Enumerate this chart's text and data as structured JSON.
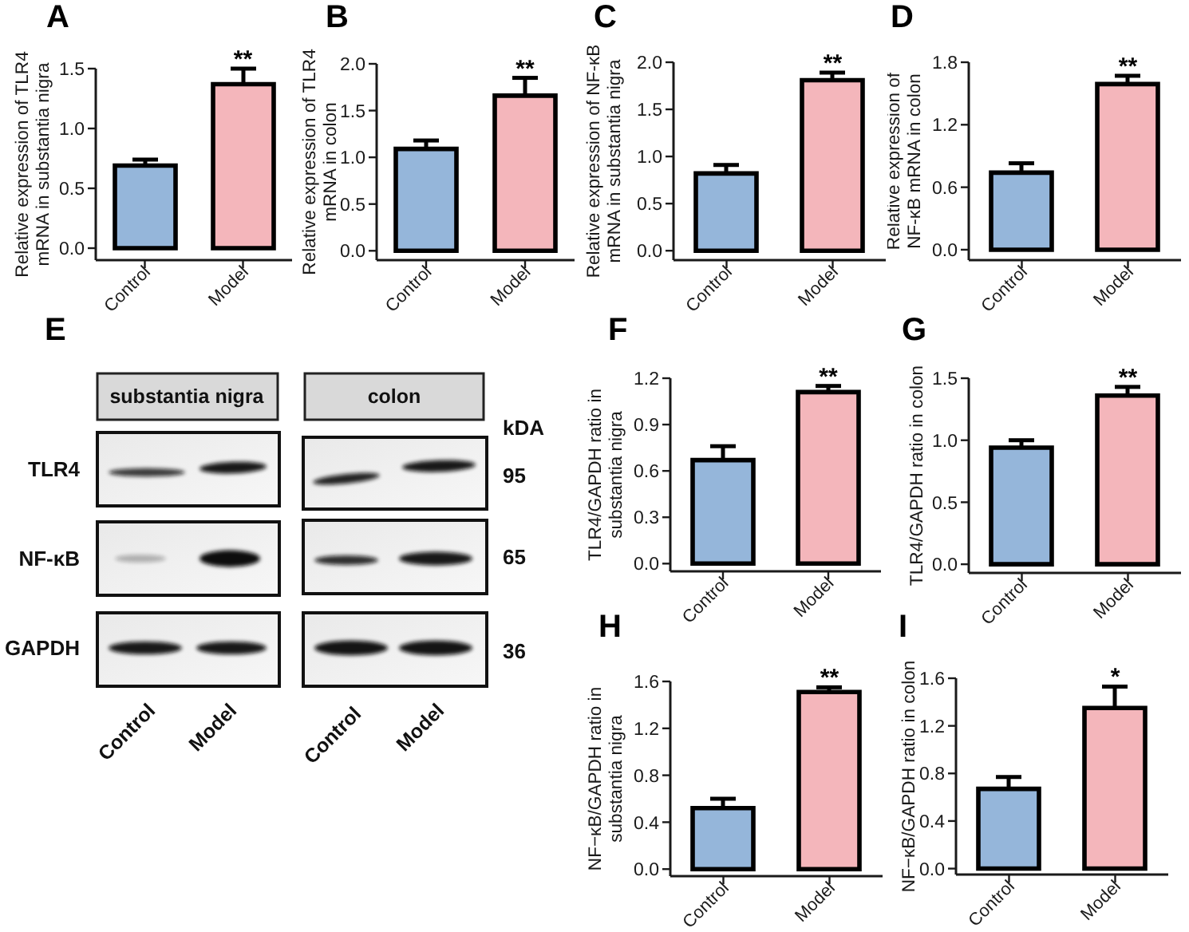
{
  "chart_data": [
    {
      "type": "bar",
      "title": "A",
      "ylabel": "Relative expression of TLR4\nmRNA in substantia nigra",
      "categories": [
        "Control",
        "Model"
      ],
      "values": [
        0.69,
        1.37
      ],
      "errors": [
        0.05,
        0.13
      ],
      "colors": [
        "#95b6da",
        "#f4b6bb"
      ],
      "ylim": [
        -0.1,
        1.5
      ],
      "yticks": [
        {
          "value": 0,
          "label": "0.0"
        },
        {
          "value": 0.5,
          "label": "0.5"
        },
        {
          "value": 1,
          "label": "1.0"
        },
        {
          "value": 1.5,
          "label": "1.5"
        }
      ],
      "annotations": [
        {
          "text": "**",
          "x": "Model",
          "y": 1.5
        }
      ]
    },
    {
      "type": "bar",
      "title": "B",
      "ylabel": "Relative expression of TLR4\nmRNA in colon",
      "categories": [
        "Control",
        "Model"
      ],
      "values": [
        1.09,
        1.66
      ],
      "errors": [
        0.09,
        0.19
      ],
      "colors": [
        "#95b6da",
        "#f4b6bb"
      ],
      "ylim": [
        -0.1,
        2.0
      ],
      "yticks": [
        {
          "value": 0,
          "label": "0.0"
        },
        {
          "value": 0.5,
          "label": "0.5"
        },
        {
          "value": 1,
          "label": "1.0"
        },
        {
          "value": 1.5,
          "label": "1.5"
        },
        {
          "value": 2,
          "label": "2.0"
        }
      ],
      "annotations": [
        {
          "text": "**",
          "x": "Model",
          "y": 1.85
        }
      ]
    },
    {
      "type": "bar",
      "title": "C",
      "ylabel": "Relative expression of NF-κB\nmRNA in substantia nigra",
      "categories": [
        "Control",
        "Model"
      ],
      "values": [
        0.82,
        1.81
      ],
      "errors": [
        0.09,
        0.08
      ],
      "colors": [
        "#95b6da",
        "#f4b6bb"
      ],
      "ylim": [
        -0.1,
        2.0
      ],
      "yticks": [
        {
          "value": 0,
          "label": "0.0"
        },
        {
          "value": 0.5,
          "label": "0.5"
        },
        {
          "value": 1,
          "label": "1.0"
        },
        {
          "value": 1.5,
          "label": "1.5"
        },
        {
          "value": 2,
          "label": "2.0"
        }
      ],
      "annotations": [
        {
          "text": "**",
          "x": "Model",
          "y": 1.89
        }
      ]
    },
    {
      "type": "bar",
      "title": "D",
      "ylabel": "Relative expression of\nNF-κB mRNA in colon",
      "categories": [
        "Control",
        "Model"
      ],
      "values": [
        0.74,
        1.59
      ],
      "errors": [
        0.09,
        0.08
      ],
      "colors": [
        "#95b6da",
        "#f4b6bb"
      ],
      "ylim": [
        -0.1,
        1.8
      ],
      "yticks": [
        {
          "value": 0,
          "label": "0.0"
        },
        {
          "value": 0.6,
          "label": "0.6"
        },
        {
          "value": 1.2,
          "label": "1.2"
        },
        {
          "value": 1.8,
          "label": "1.8"
        }
      ],
      "annotations": [
        {
          "text": "**",
          "x": "Model",
          "y": 1.67
        }
      ]
    },
    {
      "type": "other",
      "title": "E",
      "annotations": [
        "substantia nigra",
        "colon",
        "kDA",
        "TLR4",
        "NF-κB",
        "GAPDH",
        "95",
        "65",
        "36",
        "Control",
        "Model",
        "Control",
        "Model"
      ]
    },
    {
      "type": "bar",
      "title": "F",
      "ylabel": "TLR4/GAPDH ratio in\nsubstantia nigra",
      "categories": [
        "Control",
        "Model"
      ],
      "values": [
        0.67,
        1.11
      ],
      "errors": [
        0.09,
        0.04
      ],
      "colors": [
        "#95b6da",
        "#f4b6bb"
      ],
      "ylim": [
        -0.05,
        1.2
      ],
      "yticks": [
        {
          "value": 0,
          "label": "0.0"
        },
        {
          "value": 0.3,
          "label": "0.3"
        },
        {
          "value": 0.6,
          "label": "0.6"
        },
        {
          "value": 0.9,
          "label": "0.9"
        },
        {
          "value": 1.2,
          "label": "1.2"
        }
      ],
      "annotations": [
        {
          "text": "**",
          "x": "Model",
          "y": 1.15
        }
      ]
    },
    {
      "type": "bar",
      "title": "G",
      "ylabel": "TLR4/GAPDH ratio in colon",
      "categories": [
        "Control",
        "Model"
      ],
      "values": [
        0.94,
        1.36
      ],
      "errors": [
        0.06,
        0.07
      ],
      "colors": [
        "#95b6da",
        "#f4b6bb"
      ],
      "ylim": [
        -0.07,
        1.5
      ],
      "yticks": [
        {
          "value": 0,
          "label": "0.0"
        },
        {
          "value": 0.5,
          "label": "0.5"
        },
        {
          "value": 1,
          "label": "1.0"
        },
        {
          "value": 1.5,
          "label": "1.5"
        }
      ],
      "annotations": [
        {
          "text": "**",
          "x": "Model",
          "y": 1.43
        }
      ]
    },
    {
      "type": "bar",
      "title": "H",
      "ylabel": "NF−κB/GAPDH ratio in\nsubstantia nigra",
      "categories": [
        "Control",
        "Model"
      ],
      "values": [
        0.52,
        1.51
      ],
      "errors": [
        0.08,
        0.04
      ],
      "colors": [
        "#95b6da",
        "#f4b6bb"
      ],
      "ylim": [
        -0.06,
        1.6
      ],
      "yticks": [
        {
          "value": 0,
          "label": "0.0"
        },
        {
          "value": 0.4,
          "label": "0.4"
        },
        {
          "value": 0.8,
          "label": "0.8"
        },
        {
          "value": 1.2,
          "label": "1.2"
        },
        {
          "value": 1.6,
          "label": "1.6"
        }
      ],
      "annotations": [
        {
          "text": "**",
          "x": "Model",
          "y": 1.55
        }
      ]
    },
    {
      "type": "bar",
      "title": "I",
      "ylabel": "NF−κB/GAPDH ratio in colon",
      "categories": [
        "Control",
        "Model"
      ],
      "values": [
        0.67,
        1.35
      ],
      "errors": [
        0.1,
        0.18
      ],
      "colors": [
        "#95b6da",
        "#f4b6bb"
      ],
      "ylim": [
        -0.05,
        1.6
      ],
      "yticks": [
        {
          "value": 0,
          "label": "0.0"
        },
        {
          "value": 0.4,
          "label": "0.4"
        },
        {
          "value": 0.8,
          "label": "0.8"
        },
        {
          "value": 1.2,
          "label": "1.2"
        },
        {
          "value": 1.6,
          "label": "1.6"
        }
      ],
      "annotations": [
        {
          "text": "*",
          "x": "Model",
          "y": 1.53
        }
      ]
    }
  ]
}
